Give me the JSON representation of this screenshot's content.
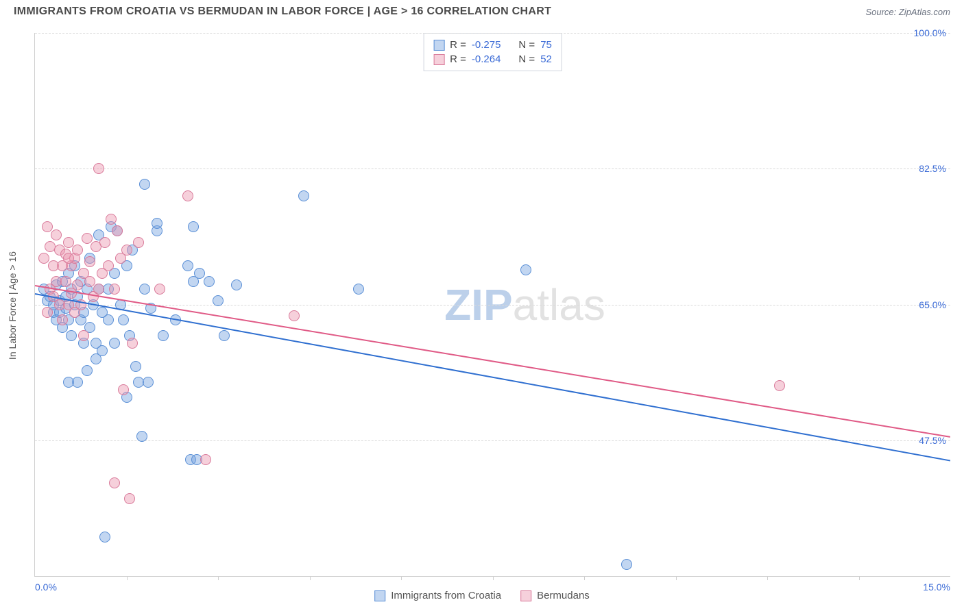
{
  "header": {
    "title": "IMMIGRANTS FROM CROATIA VS BERMUDAN IN LABOR FORCE | AGE > 16 CORRELATION CHART",
    "source_prefix": "Source: ",
    "source_name": "ZipAtlas.com"
  },
  "chart": {
    "type": "scatter",
    "yaxis_label": "In Labor Force | Age > 16",
    "xlim": [
      0,
      15
    ],
    "ylim": [
      30,
      100
    ],
    "background_color": "#ffffff",
    "grid_color": "#d9d9d9",
    "axis_color": "#cfcfcf",
    "tick_label_color": "#3b6bd6",
    "yticks": [
      {
        "v": 47.5,
        "label": "47.5%"
      },
      {
        "v": 65.0,
        "label": "65.0%"
      },
      {
        "v": 82.5,
        "label": "82.5%"
      },
      {
        "v": 100.0,
        "label": "100.0%"
      }
    ],
    "xticks_minor": [
      1.5,
      3.0,
      4.5,
      6.0,
      7.5,
      9.0,
      10.5,
      12.0,
      13.5
    ],
    "xtick_labels": [
      {
        "v": 0,
        "label": "0.0%"
      },
      {
        "v": 15,
        "label": "15.0%"
      }
    ],
    "point_radius": 8,
    "point_stroke_width": 1,
    "series": [
      {
        "name": "Immigrants from Croatia",
        "fill": "rgba(120,165,225,0.45)",
        "stroke": "#5a8fd6",
        "trend_color": "#2f6fd0",
        "trend": {
          "x1": 0,
          "y1": 66.5,
          "x2": 15,
          "y2": 45.0
        },
        "stats": {
          "R": "-0.275",
          "N": "75"
        },
        "points": [
          [
            0.15,
            67
          ],
          [
            0.2,
            65.5
          ],
          [
            0.25,
            66
          ],
          [
            0.3,
            64
          ],
          [
            0.3,
            65
          ],
          [
            0.35,
            67.5
          ],
          [
            0.35,
            63
          ],
          [
            0.4,
            65.5
          ],
          [
            0.4,
            64
          ],
          [
            0.45,
            68
          ],
          [
            0.45,
            62
          ],
          [
            0.5,
            66
          ],
          [
            0.5,
            64.5
          ],
          [
            0.55,
            69
          ],
          [
            0.55,
            63
          ],
          [
            0.6,
            67
          ],
          [
            0.6,
            61
          ],
          [
            0.65,
            65
          ],
          [
            0.65,
            70
          ],
          [
            0.7,
            55
          ],
          [
            0.7,
            66
          ],
          [
            0.75,
            63
          ],
          [
            0.75,
            68
          ],
          [
            0.8,
            64
          ],
          [
            0.8,
            60
          ],
          [
            0.85,
            56.5
          ],
          [
            0.85,
            67
          ],
          [
            0.9,
            62
          ],
          [
            0.9,
            71
          ],
          [
            0.95,
            65
          ],
          [
            1.0,
            58
          ],
          [
            1.0,
            60
          ],
          [
            1.05,
            74
          ],
          [
            1.05,
            67
          ],
          [
            1.1,
            64
          ],
          [
            1.1,
            59
          ],
          [
            1.15,
            35
          ],
          [
            1.2,
            63
          ],
          [
            1.2,
            67
          ],
          [
            1.25,
            75
          ],
          [
            1.3,
            60
          ],
          [
            1.3,
            69
          ],
          [
            1.35,
            74.5
          ],
          [
            1.4,
            65
          ],
          [
            1.45,
            63
          ],
          [
            1.5,
            53
          ],
          [
            1.5,
            70
          ],
          [
            1.55,
            61
          ],
          [
            1.6,
            72
          ],
          [
            1.65,
            57
          ],
          [
            1.7,
            55
          ],
          [
            1.75,
            48
          ],
          [
            1.8,
            80.5
          ],
          [
            1.8,
            67
          ],
          [
            1.85,
            55
          ],
          [
            1.9,
            64.5
          ],
          [
            2.0,
            74.5
          ],
          [
            2.0,
            75.5
          ],
          [
            2.1,
            61
          ],
          [
            2.3,
            63
          ],
          [
            2.5,
            70
          ],
          [
            2.55,
            45
          ],
          [
            2.6,
            68
          ],
          [
            2.6,
            75
          ],
          [
            2.65,
            45
          ],
          [
            2.7,
            69
          ],
          [
            2.85,
            68
          ],
          [
            3.0,
            65.5
          ],
          [
            3.1,
            61
          ],
          [
            3.3,
            67.5
          ],
          [
            4.4,
            79
          ],
          [
            5.3,
            67
          ],
          [
            8.05,
            69.5
          ],
          [
            9.7,
            31.5
          ],
          [
            0.55,
            55
          ]
        ]
      },
      {
        "name": "Bermudans",
        "fill": "rgba(235,150,175,0.45)",
        "stroke": "#d97a9a",
        "trend_color": "#e05a86",
        "trend": {
          "x1": 0,
          "y1": 67.5,
          "x2": 15,
          "y2": 48.0
        },
        "stats": {
          "R": "-0.264",
          "N": "52"
        },
        "points": [
          [
            0.15,
            71
          ],
          [
            0.2,
            75
          ],
          [
            0.2,
            64
          ],
          [
            0.25,
            67
          ],
          [
            0.25,
            72.5
          ],
          [
            0.3,
            70
          ],
          [
            0.3,
            66
          ],
          [
            0.35,
            68
          ],
          [
            0.35,
            74
          ],
          [
            0.4,
            65
          ],
          [
            0.4,
            72
          ],
          [
            0.45,
            70
          ],
          [
            0.45,
            63
          ],
          [
            0.5,
            71.5
          ],
          [
            0.5,
            68
          ],
          [
            0.55,
            65
          ],
          [
            0.55,
            73
          ],
          [
            0.6,
            70
          ],
          [
            0.6,
            66.5
          ],
          [
            0.65,
            71
          ],
          [
            0.65,
            64
          ],
          [
            0.7,
            67.5
          ],
          [
            0.7,
            72
          ],
          [
            0.75,
            65
          ],
          [
            0.8,
            69
          ],
          [
            0.8,
            61
          ],
          [
            0.85,
            73.5
          ],
          [
            0.9,
            68
          ],
          [
            0.9,
            70.5
          ],
          [
            0.95,
            66
          ],
          [
            1.0,
            72.5
          ],
          [
            1.05,
            82.5
          ],
          [
            1.05,
            67
          ],
          [
            1.1,
            69
          ],
          [
            1.15,
            73
          ],
          [
            1.2,
            70
          ],
          [
            1.25,
            76
          ],
          [
            1.3,
            67
          ],
          [
            1.3,
            42
          ],
          [
            1.35,
            74.5
          ],
          [
            1.4,
            71
          ],
          [
            1.45,
            54
          ],
          [
            1.5,
            72
          ],
          [
            1.55,
            40
          ],
          [
            1.6,
            60
          ],
          [
            1.7,
            73
          ],
          [
            2.05,
            67
          ],
          [
            2.5,
            79
          ],
          [
            2.8,
            45
          ],
          [
            4.25,
            63.5
          ],
          [
            12.2,
            54.5
          ],
          [
            0.55,
            71
          ]
        ]
      }
    ]
  },
  "stats_box": {
    "r_label": "R =",
    "n_label": "N ="
  },
  "bottom_legend": {
    "items": [
      "Immigrants from Croatia",
      "Bermudans"
    ]
  },
  "watermark": {
    "part1": "ZIP",
    "part2": "atlas"
  }
}
